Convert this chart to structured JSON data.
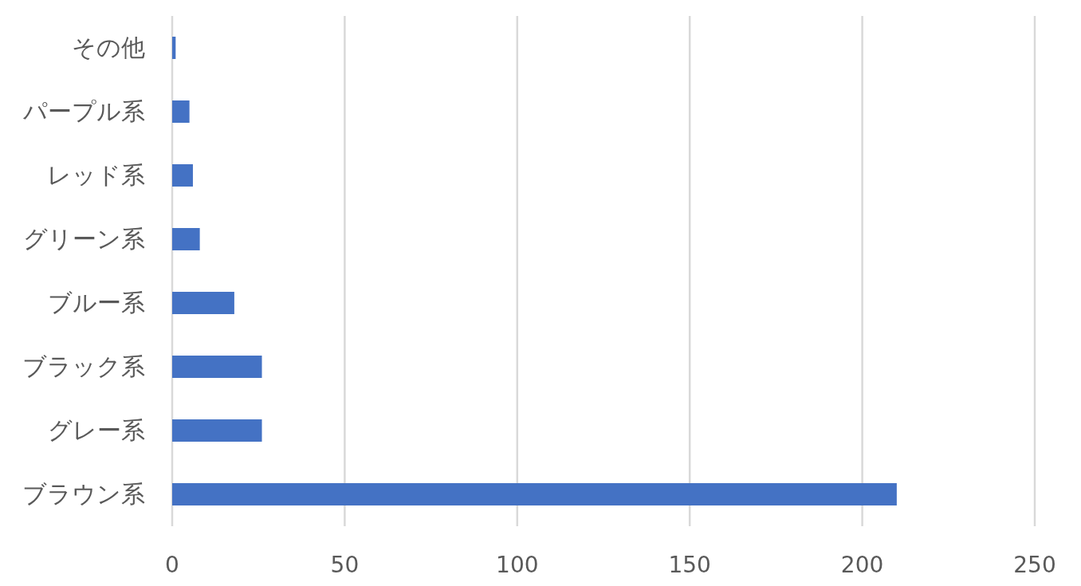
{
  "chart_data": {
    "type": "bar",
    "orientation": "horizontal",
    "categories": [
      "その他",
      "パープル系",
      "レッド系",
      "グリーン系",
      "ブルー系",
      "ブラック系",
      "グレー系",
      "ブラウン系"
    ],
    "values": [
      1,
      5,
      6,
      8,
      18,
      26,
      26,
      210
    ],
    "color": "#4472c4",
    "xlim": [
      0,
      250
    ],
    "xticks": [
      0,
      50,
      100,
      150,
      200,
      250
    ],
    "grid": "x"
  }
}
